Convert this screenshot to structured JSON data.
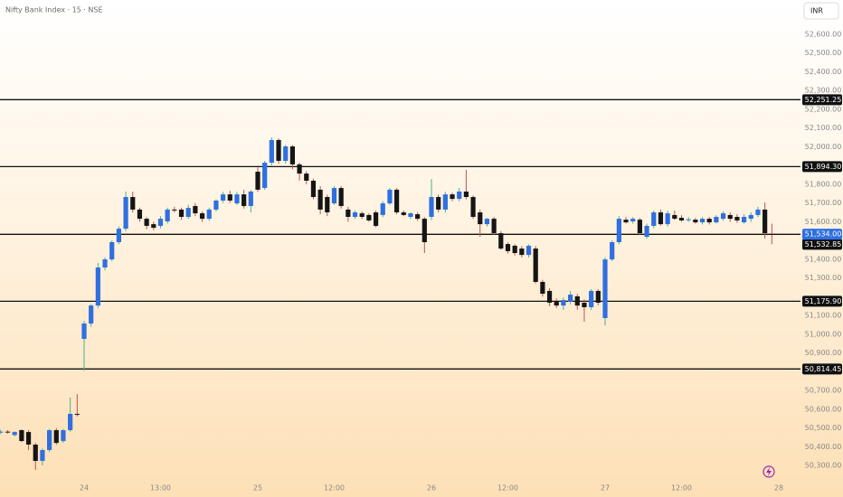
{
  "chart_data": {
    "type": "candlestick",
    "title": "Nifty Bank Index · 15 · NSE",
    "currency": "INR",
    "up_color": "#2f6fe0",
    "down_color": "#151515",
    "up_wick": "#4caf8a",
    "down_wick": "#c0504d",
    "ylim": [
      50250,
      52700
    ],
    "yticks": [
      {
        "value": 52600,
        "label": "52,600.00"
      },
      {
        "value": 52500,
        "label": "52,500.00"
      },
      {
        "value": 52400,
        "label": "52,400.00"
      },
      {
        "value": 52300,
        "label": "52,300.00"
      },
      {
        "value": 52200,
        "label": "52,200.00"
      },
      {
        "value": 52100,
        "label": "52,100.00"
      },
      {
        "value": 52000,
        "label": "52,000.00"
      },
      {
        "value": 51800,
        "label": "51,800.00"
      },
      {
        "value": 51700,
        "label": "51,700.00"
      },
      {
        "value": 51600,
        "label": "51,600.00"
      },
      {
        "value": 51400,
        "label": "51,400.00"
      },
      {
        "value": 51300,
        "label": "51,300.00"
      },
      {
        "value": 51100,
        "label": "51,100.00"
      },
      {
        "value": 51000,
        "label": "51,000.00"
      },
      {
        "value": 50900,
        "label": "50,900.00"
      },
      {
        "value": 50700,
        "label": "50,700.00"
      },
      {
        "value": 50600,
        "label": "50,600.00"
      },
      {
        "value": 50500,
        "label": "50,500.00"
      },
      {
        "value": 50400,
        "label": "50,400.00"
      },
      {
        "value": 50300,
        "label": "50,300.00"
      }
    ],
    "xlim": [
      0,
      114
    ],
    "xticks": [
      {
        "value": 12,
        "label": "24"
      },
      {
        "value": 23,
        "label": "13:00"
      },
      {
        "value": 37,
        "label": "25"
      },
      {
        "value": 48,
        "label": "12:00"
      },
      {
        "value": 62,
        "label": "26"
      },
      {
        "value": 73,
        "label": "12:00"
      },
      {
        "value": 87,
        "label": "27"
      },
      {
        "value": 98,
        "label": "12:00"
      },
      {
        "value": 112,
        "label": "28"
      }
    ],
    "levels": [
      {
        "value": 52251.25,
        "label": "52,251.25"
      },
      {
        "value": 51894.3,
        "label": "51,894.30"
      },
      {
        "value": 51532.85,
        "label": "51,532.85"
      },
      {
        "value": 51175.9,
        "label": "51,175.90"
      },
      {
        "value": 50814.45,
        "label": "50,814.45"
      }
    ],
    "last_price": {
      "value": 51534.0,
      "label": "51,534.00"
    },
    "candles": [
      [
        50478,
        50490,
        50468,
        50480
      ],
      [
        50480,
        50488,
        50470,
        50478
      ],
      [
        50462,
        50482,
        50455,
        50478
      ],
      [
        50488,
        50492,
        50425,
        50430
      ],
      [
        50478,
        50488,
        50382,
        50411
      ],
      [
        50411,
        50420,
        50276,
        50324
      ],
      [
        50324,
        50390,
        50300,
        50382
      ],
      [
        50382,
        50495,
        50370,
        50488
      ],
      [
        50488,
        50500,
        50410,
        50420
      ],
      [
        50430,
        50495,
        50420,
        50488
      ],
      [
        50488,
        50662,
        50480,
        50575
      ],
      [
        50575,
        50680,
        50560,
        50570
      ],
      [
        50975,
        51071,
        50806,
        51057
      ],
      [
        51057,
        51160,
        51040,
        51153
      ],
      [
        51153,
        51380,
        51140,
        51356
      ],
      [
        51356,
        51410,
        51340,
        51399
      ],
      [
        51399,
        51500,
        51390,
        51491
      ],
      [
        51491,
        51575,
        51480,
        51563
      ],
      [
        51563,
        51761,
        51550,
        51732
      ],
      [
        51732,
        51761,
        51650,
        51665
      ],
      [
        51665,
        51675,
        51600,
        51616
      ],
      [
        51616,
        51625,
        51560,
        51578
      ],
      [
        51587,
        51600,
        51555,
        51568
      ],
      [
        51578,
        51630,
        51565,
        51616
      ],
      [
        51602,
        51675,
        51590,
        51665
      ],
      [
        51665,
        51680,
        51650,
        51660
      ],
      [
        51665,
        51675,
        51610,
        51626
      ],
      [
        51626,
        51690,
        51615,
        51674
      ],
      [
        51684,
        51700,
        51630,
        51645
      ],
      [
        51645,
        51655,
        51600,
        51616
      ],
      [
        51616,
        51675,
        51605,
        51665
      ],
      [
        51665,
        51720,
        51655,
        51713
      ],
      [
        51713,
        51760,
        51700,
        51746
      ],
      [
        51746,
        51765,
        51700,
        51713
      ],
      [
        51698,
        51760,
        51690,
        51746
      ],
      [
        51746,
        51770,
        51670,
        51684
      ],
      [
        51684,
        51770,
        51650,
        51761
      ],
      [
        51867,
        51890,
        51760,
        51771
      ],
      [
        51780,
        51925,
        51770,
        51915
      ],
      [
        51915,
        52050,
        51900,
        52036
      ],
      [
        52036,
        52045,
        51910,
        51925
      ],
      [
        51925,
        52010,
        51910,
        52002
      ],
      [
        52002,
        52010,
        51880,
        51906
      ],
      [
        51906,
        51915,
        51820,
        51857
      ],
      [
        51857,
        51870,
        51800,
        51819
      ],
      [
        51819,
        51830,
        51720,
        51732
      ],
      [
        51771,
        51790,
        51640,
        51665
      ],
      [
        51732,
        51745,
        51630,
        51650
      ],
      [
        51698,
        51790,
        51690,
        51780
      ],
      [
        51780,
        51790,
        51670,
        51684
      ],
      [
        51665,
        51680,
        51600,
        51626
      ],
      [
        51626,
        51660,
        51615,
        51650
      ],
      [
        51645,
        51655,
        51615,
        51626
      ],
      [
        51636,
        51645,
        51600,
        51607
      ],
      [
        51650,
        51660,
        51570,
        51578
      ],
      [
        51636,
        51710,
        51625,
        51698
      ],
      [
        51698,
        51780,
        51690,
        51771
      ],
      [
        51771,
        51780,
        51640,
        51650
      ],
      [
        51650,
        51660,
        51630,
        51636
      ],
      [
        51626,
        51650,
        51615,
        51645
      ],
      [
        51640,
        51650,
        51605,
        51616
      ],
      [
        51616,
        51625,
        51433,
        51491
      ],
      [
        51626,
        51828,
        51610,
        51732
      ],
      [
        51732,
        51745,
        51650,
        51665
      ],
      [
        51665,
        51760,
        51650,
        51746
      ],
      [
        51746,
        51755,
        51710,
        51722
      ],
      [
        51722,
        51780,
        51710,
        51761
      ],
      [
        51761,
        51877,
        51720,
        51732
      ],
      [
        51732,
        51740,
        51615,
        51626
      ],
      [
        51650,
        51665,
        51520,
        51587
      ],
      [
        51587,
        51620,
        51575,
        51616
      ],
      [
        51616,
        51625,
        51530,
        51539
      ],
      [
        51539,
        51550,
        51450,
        51457
      ],
      [
        51481,
        51490,
        51430,
        51443
      ],
      [
        51472,
        51480,
        51420,
        51433
      ],
      [
        51457,
        51470,
        51410,
        51423
      ],
      [
        51423,
        51480,
        51410,
        51472
      ],
      [
        51457,
        51470,
        51270,
        51279
      ],
      [
        51279,
        51290,
        51200,
        51216
      ],
      [
        51231,
        51245,
        51150,
        51168
      ],
      [
        51177,
        51190,
        51140,
        51153
      ],
      [
        51153,
        51195,
        51130,
        51182
      ],
      [
        51173,
        51230,
        51160,
        51211
      ],
      [
        51202,
        51215,
        51130,
        51153
      ],
      [
        51168,
        51185,
        51067,
        51144
      ],
      [
        51144,
        51240,
        51130,
        51231
      ],
      [
        51231,
        51240,
        51155,
        51168
      ],
      [
        51086,
        51410,
        51047,
        51399
      ],
      [
        51399,
        51500,
        51390,
        51491
      ],
      [
        51491,
        51630,
        51480,
        51616
      ],
      [
        51611,
        51625,
        51590,
        51597
      ],
      [
        51602,
        51625,
        51590,
        51616
      ],
      [
        51611,
        51620,
        51530,
        51539
      ],
      [
        51520,
        51590,
        51510,
        51578
      ],
      [
        51578,
        51660,
        51565,
        51650
      ],
      [
        51650,
        51665,
        51580,
        51587
      ],
      [
        51587,
        51660,
        51575,
        51645
      ],
      [
        51636,
        51660,
        51610,
        51616
      ],
      [
        51621,
        51635,
        51600,
        51607
      ],
      [
        51611,
        51625,
        51600,
        51613
      ],
      [
        51611,
        51620,
        51590,
        51597
      ],
      [
        51597,
        51625,
        51585,
        51616
      ],
      [
        51616,
        51625,
        51585,
        51597
      ],
      [
        51597,
        51635,
        51590,
        51626
      ],
      [
        51616,
        51655,
        51605,
        51645
      ],
      [
        51636,
        51650,
        51600,
        51616
      ],
      [
        51626,
        51640,
        51595,
        51607
      ],
      [
        51597,
        51640,
        51590,
        51626
      ],
      [
        51616,
        51650,
        51600,
        51636
      ],
      [
        51636,
        51680,
        51625,
        51665
      ],
      [
        51665,
        51703,
        51510,
        51539
      ],
      [
        51535,
        51590,
        51480,
        51534
      ]
    ]
  }
}
